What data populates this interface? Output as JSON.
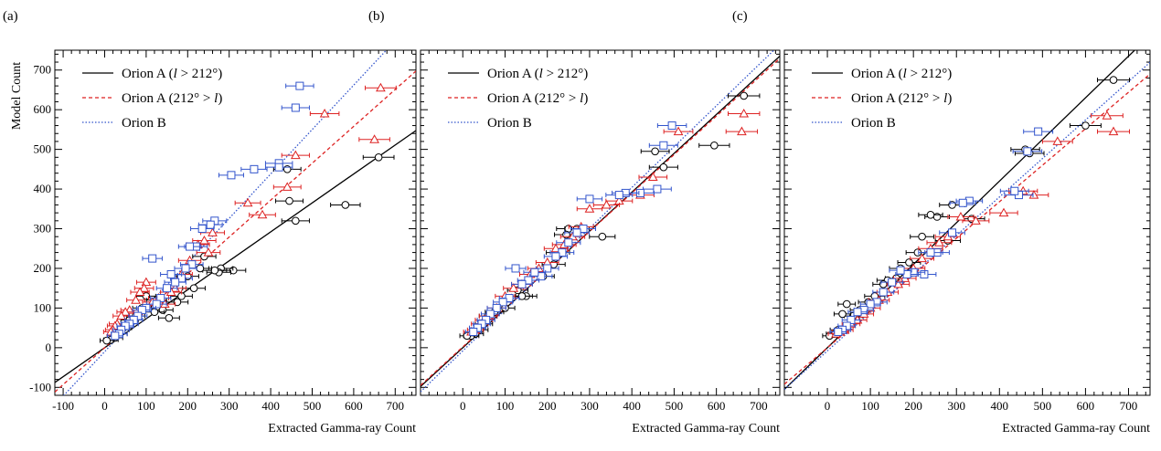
{
  "figure": {
    "ylabel": "Model Count",
    "xlabel": "Extracted Gamma-ray Count"
  },
  "legend": [
    {
      "pre": "Orion A (",
      "italic": "l",
      "post": " > 212°)",
      "color": "#000000",
      "dash": "",
      "series": "a_east"
    },
    {
      "pre": "Orion A (212° > ",
      "italic": "l",
      "post": ")",
      "color": "#dd2222",
      "dash": "4,3",
      "series": "a_west"
    },
    {
      "pre": "Orion B",
      "italic": "",
      "post": "",
      "color": "#3355cc",
      "dash": "1.5,2",
      "series": "b"
    }
  ],
  "colors": {
    "a_east": "#000000",
    "a_west": "#dd2222",
    "b": "#3355cc"
  },
  "markers": {
    "a_east": "circle",
    "a_west": "triangle",
    "b": "square"
  },
  "chart_data": [
    {
      "type": "scatter",
      "panel_label": "(a)",
      "xlabel": "Extracted Gamma-ray Count",
      "ylabel": "Model Count",
      "xlim": [
        -120,
        750
      ],
      "ylim": [
        -120,
        750
      ],
      "xticks": [
        -100,
        0,
        100,
        200,
        300,
        400,
        500,
        600,
        700
      ],
      "yticks": [
        -100,
        0,
        100,
        200,
        300,
        400,
        500,
        600,
        700
      ],
      "fit_lines": {
        "a_east": [
          0.73,
          0
        ],
        "a_west": [
          0.93,
          0
        ],
        "b": [
          1.12,
          -10
        ]
      },
      "series": [
        {
          "name": "Orion A (l > 212°)",
          "key": "a_east",
          "points": [
            [
              660,
              480
            ],
            [
              580,
              360
            ],
            [
              460,
              320
            ],
            [
              445,
              370
            ],
            [
              440,
              450
            ],
            [
              310,
              195
            ],
            [
              280,
              200
            ],
            [
              275,
              190
            ],
            [
              265,
              195
            ],
            [
              215,
              150
            ],
            [
              185,
              130
            ],
            [
              175,
              115
            ],
            [
              155,
              75
            ],
            [
              140,
              95
            ],
            [
              120,
              90
            ],
            [
              100,
              130
            ],
            [
              90,
              100
            ],
            [
              75,
              80
            ],
            [
              60,
              70
            ],
            [
              45,
              50
            ],
            [
              35,
              35
            ],
            [
              25,
              25
            ],
            [
              15,
              20
            ],
            [
              5,
              18
            ],
            [
              125,
              120
            ],
            [
              200,
              180
            ],
            [
              240,
              230
            ],
            [
              230,
              200
            ]
          ]
        },
        {
          "name": "Orion A (212° > l)",
          "key": "a_west",
          "points": [
            [
              665,
              655
            ],
            [
              650,
              525
            ],
            [
              530,
              590
            ],
            [
              460,
              485
            ],
            [
              440,
              405
            ],
            [
              380,
              335
            ],
            [
              345,
              365
            ],
            [
              260,
              290
            ],
            [
              250,
              240
            ],
            [
              240,
              270
            ],
            [
              225,
              260
            ],
            [
              205,
              220
            ],
            [
              185,
              185
            ],
            [
              170,
              150
            ],
            [
              160,
              140
            ],
            [
              145,
              110
            ],
            [
              130,
              125
            ],
            [
              115,
              115
            ],
            [
              100,
              165
            ],
            [
              95,
              150
            ],
            [
              85,
              140
            ],
            [
              75,
              120
            ],
            [
              60,
              95
            ],
            [
              50,
              90
            ],
            [
              40,
              80
            ],
            [
              30,
              60
            ],
            [
              25,
              55
            ],
            [
              20,
              45
            ],
            [
              15,
              40
            ]
          ]
        },
        {
          "name": "Orion B",
          "key": "b",
          "points": [
            [
              470,
              660
            ],
            [
              460,
              605
            ],
            [
              420,
              465
            ],
            [
              420,
              455
            ],
            [
              360,
              450
            ],
            [
              305,
              435
            ],
            [
              265,
              320
            ],
            [
              255,
              310
            ],
            [
              235,
              300
            ],
            [
              220,
              255
            ],
            [
              205,
              255
            ],
            [
              210,
              210
            ],
            [
              195,
              200
            ],
            [
              185,
              175
            ],
            [
              170,
              165
            ],
            [
              160,
              185
            ],
            [
              150,
              150
            ],
            [
              135,
              125
            ],
            [
              125,
              110
            ],
            [
              115,
              225
            ],
            [
              100,
              100
            ],
            [
              90,
              95
            ],
            [
              80,
              80
            ],
            [
              70,
              70
            ],
            [
              60,
              60
            ],
            [
              50,
              55
            ],
            [
              40,
              45
            ],
            [
              35,
              35
            ],
            [
              25,
              30
            ]
          ]
        }
      ]
    },
    {
      "type": "scatter",
      "panel_label": "(b)",
      "xlabel": "Extracted Gamma-ray Count",
      "ylabel": "",
      "xlim": [
        -100,
        750
      ],
      "ylim": [
        -120,
        750
      ],
      "xticks": [
        0,
        100,
        200,
        300,
        400,
        500,
        600,
        700
      ],
      "yticks": [
        -100,
        0,
        100,
        200,
        300,
        400,
        500,
        600,
        700
      ],
      "fit_lines": {
        "a_east": [
          0.98,
          0
        ],
        "a_west": [
          0.97,
          2
        ],
        "b": [
          1.03,
          -8
        ]
      },
      "series": [
        {
          "name": "Orion A (l > 212°)",
          "key": "a_east",
          "points": [
            [
              665,
              635
            ],
            [
              595,
              510
            ],
            [
              475,
              455
            ],
            [
              455,
              495
            ],
            [
              330,
              280
            ],
            [
              270,
              300
            ],
            [
              250,
              300
            ],
            [
              245,
              285
            ],
            [
              150,
              130
            ],
            [
              140,
              130
            ],
            [
              130,
              145
            ],
            [
              100,
              100
            ],
            [
              75,
              90
            ],
            [
              60,
              80
            ],
            [
              50,
              60
            ],
            [
              40,
              45
            ],
            [
              30,
              35
            ],
            [
              20,
              30
            ],
            [
              10,
              30
            ],
            [
              190,
              180
            ],
            [
              215,
              210
            ],
            [
              225,
              240
            ]
          ]
        },
        {
          "name": "Orion A (212° > l)",
          "key": "a_west",
          "points": [
            [
              665,
              590
            ],
            [
              660,
              545
            ],
            [
              510,
              545
            ],
            [
              450,
              430
            ],
            [
              420,
              385
            ],
            [
              370,
              370
            ],
            [
              340,
              360
            ],
            [
              300,
              350
            ],
            [
              280,
              305
            ],
            [
              260,
              280
            ],
            [
              240,
              260
            ],
            [
              220,
              250
            ],
            [
              200,
              215
            ],
            [
              180,
              200
            ],
            [
              160,
              185
            ],
            [
              140,
              160
            ],
            [
              120,
              150
            ],
            [
              100,
              130
            ],
            [
              80,
              100
            ],
            [
              60,
              80
            ],
            [
              50,
              70
            ],
            [
              40,
              60
            ],
            [
              30,
              45
            ],
            [
              20,
              40
            ]
          ]
        },
        {
          "name": "Orion B",
          "key": "b",
          "points": [
            [
              495,
              560
            ],
            [
              475,
              510
            ],
            [
              460,
              400
            ],
            [
              420,
              390
            ],
            [
              385,
              390
            ],
            [
              370,
              385
            ],
            [
              300,
              375
            ],
            [
              285,
              300
            ],
            [
              270,
              290
            ],
            [
              250,
              265
            ],
            [
              235,
              240
            ],
            [
              220,
              230
            ],
            [
              200,
              200
            ],
            [
              185,
              180
            ],
            [
              170,
              190
            ],
            [
              155,
              170
            ],
            [
              140,
              160
            ],
            [
              125,
              200
            ],
            [
              110,
              125
            ],
            [
              95,
              115
            ],
            [
              80,
              100
            ],
            [
              65,
              85
            ],
            [
              55,
              70
            ],
            [
              45,
              60
            ],
            [
              35,
              50
            ],
            [
              25,
              40
            ]
          ]
        }
      ]
    },
    {
      "type": "scatter",
      "panel_label": "(c)",
      "xlabel": "Extracted Gamma-ray Count",
      "ylabel": "",
      "xlim": [
        -100,
        750
      ],
      "ylim": [
        -120,
        750
      ],
      "xticks": [
        0,
        100,
        200,
        300,
        400,
        500,
        600,
        700
      ],
      "yticks": [
        -100,
        0,
        100,
        200,
        300,
        400,
        500,
        600,
        700
      ],
      "fit_lines": {
        "a_east": [
          1.05,
          0
        ],
        "a_west": [
          0.92,
          0
        ],
        "b": [
          0.97,
          -8
        ]
      },
      "series": [
        {
          "name": "Orion A (l > 212°)",
          "key": "a_east",
          "points": [
            [
              665,
              675
            ],
            [
              600,
              560
            ],
            [
              470,
              490
            ],
            [
              460,
              500
            ],
            [
              335,
              325
            ],
            [
              290,
              360
            ],
            [
              280,
              270
            ],
            [
              255,
              330
            ],
            [
              240,
              335
            ],
            [
              220,
              280
            ],
            [
              210,
              240
            ],
            [
              190,
              215
            ],
            [
              170,
              200
            ],
            [
              160,
              175
            ],
            [
              140,
              170
            ],
            [
              130,
              160
            ],
            [
              110,
              130
            ],
            [
              95,
              115
            ],
            [
              75,
              95
            ],
            [
              60,
              80
            ],
            [
              45,
              110
            ],
            [
              35,
              85
            ],
            [
              25,
              45
            ],
            [
              15,
              35
            ],
            [
              5,
              30
            ]
          ]
        },
        {
          "name": "Orion A (212° > l)",
          "key": "a_west",
          "points": [
            [
              665,
              545
            ],
            [
              650,
              585
            ],
            [
              535,
              520
            ],
            [
              480,
              385
            ],
            [
              455,
              395
            ],
            [
              410,
              340
            ],
            [
              345,
              320
            ],
            [
              310,
              330
            ],
            [
              280,
              280
            ],
            [
              260,
              265
            ],
            [
              240,
              250
            ],
            [
              220,
              225
            ],
            [
              200,
              200
            ],
            [
              180,
              175
            ],
            [
              165,
              160
            ],
            [
              140,
              140
            ],
            [
              120,
              120
            ],
            [
              100,
              100
            ],
            [
              85,
              85
            ],
            [
              70,
              70
            ],
            [
              55,
              60
            ],
            [
              40,
              45
            ],
            [
              30,
              40
            ],
            [
              20,
              35
            ]
          ]
        },
        {
          "name": "Orion B",
          "key": "b",
          "points": [
            [
              490,
              545
            ],
            [
              465,
              495
            ],
            [
              445,
              385
            ],
            [
              435,
              395
            ],
            [
              330,
              370
            ],
            [
              315,
              365
            ],
            [
              290,
              290
            ],
            [
              255,
              240
            ],
            [
              240,
              240
            ],
            [
              225,
              185
            ],
            [
              200,
              190
            ],
            [
              185,
              185
            ],
            [
              170,
              195
            ],
            [
              150,
              165
            ],
            [
              130,
              140
            ],
            [
              115,
              115
            ],
            [
              100,
              110
            ],
            [
              85,
              95
            ],
            [
              70,
              90
            ],
            [
              55,
              70
            ],
            [
              45,
              55
            ],
            [
              35,
              45
            ],
            [
              25,
              40
            ]
          ]
        }
      ]
    }
  ]
}
